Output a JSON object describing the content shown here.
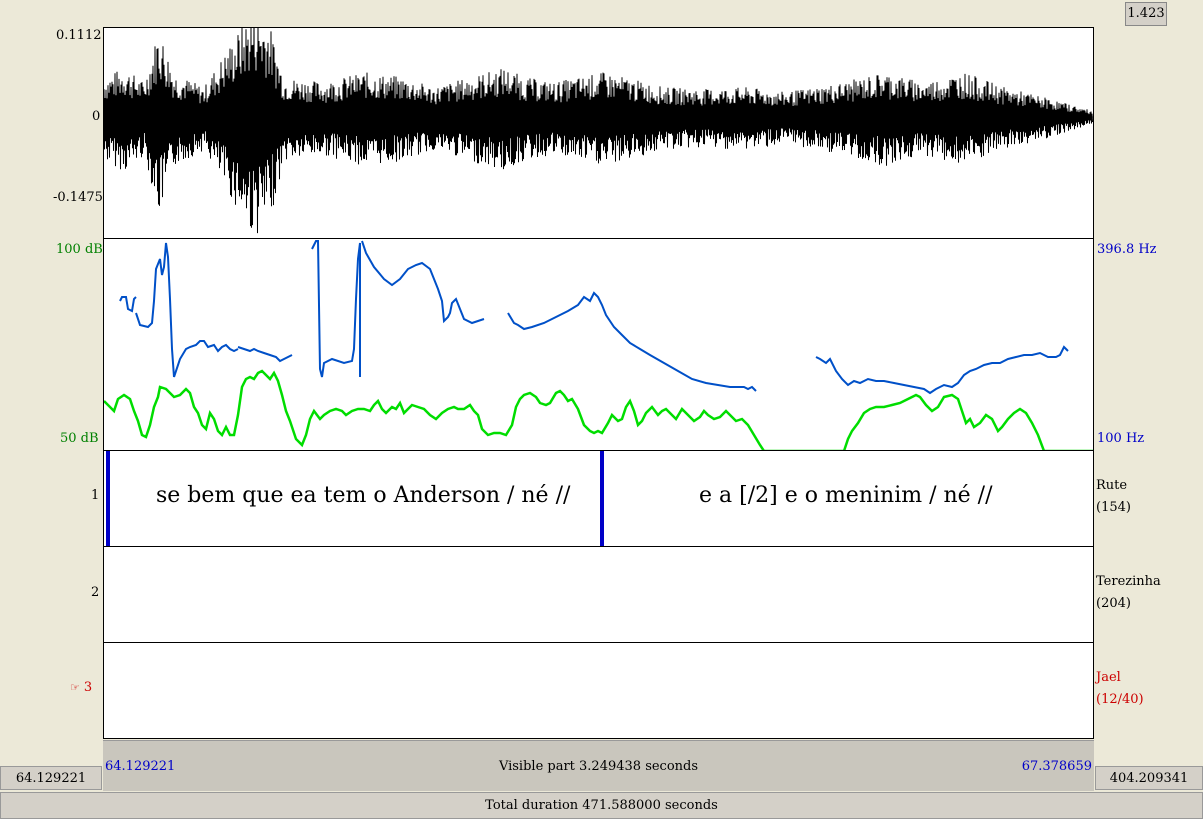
{
  "zoom_label": "1.423",
  "waveform": {
    "max": "0.1112",
    "zero": "0",
    "min": "-0.1475"
  },
  "analysis": {
    "intensity_top": "100 dB",
    "intensity_bottom": "50 dB",
    "pitch_top": "396.8 Hz",
    "pitch_bottom": "100 Hz",
    "pitch_color": "#0050c8",
    "intensity_color": "#00dd00"
  },
  "tiers": [
    {
      "number": "1",
      "name": "Rute",
      "count": "(154)",
      "segments": [
        "se bem que ea tem o Anderson / né //",
        "e a [/2] e o meninim / né //"
      ]
    },
    {
      "number": "2",
      "name": "Terezinha",
      "count": "(204)"
    },
    {
      "number": "3",
      "name": "Jael",
      "count": "(12/40)",
      "selected": true,
      "pointer_icon": "pointing-hand-icon"
    }
  ],
  "timebar": {
    "window_start": "64.129221",
    "window_end": "67.378659",
    "visible_part": "Visible part 3.249438 seconds",
    "before_time": "64.129221",
    "after_time": "404.209341",
    "total": "Total duration 471.588000 seconds"
  }
}
